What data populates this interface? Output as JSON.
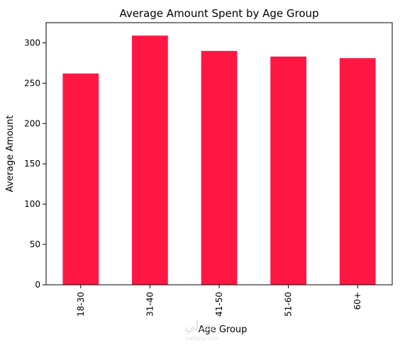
{
  "chart_data": {
    "type": "bar",
    "title": "Average Amount Spent by Age Group",
    "xlabel": "Age Group",
    "ylabel": "Average Amount",
    "categories": [
      "18-30",
      "31-40",
      "41-50",
      "51-60",
      "60+"
    ],
    "values": [
      262,
      309,
      290,
      283,
      281
    ],
    "ylim": [
      0,
      325
    ],
    "yticks": [
      0,
      50,
      100,
      150,
      200,
      250,
      300
    ],
    "grid": false,
    "legend": "none",
    "bar_color": "#ff1744"
  },
  "watermark": {
    "text_main": "نفذلي",
    "text_sub": "nafezly.com"
  }
}
